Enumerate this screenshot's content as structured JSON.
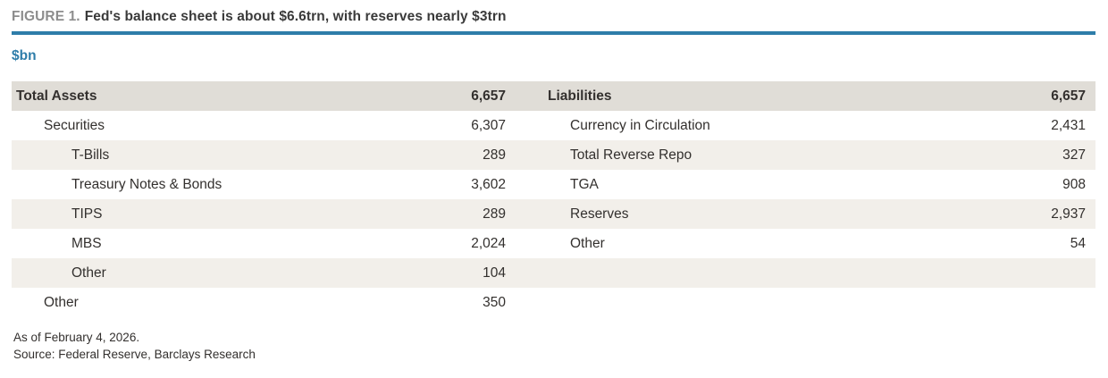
{
  "colors": {
    "accent": "#2e7da9",
    "figure_label": "#8d8d8d",
    "title_text": "#3a3a3a",
    "text": "#33302e",
    "header_bg": "#e0ddd7",
    "stripe_bg": "#f2efea"
  },
  "figure": {
    "label": "FIGURE 1.",
    "title": "Fed's balance sheet is about $6.6trn, with reserves nearly $3trn"
  },
  "units_label": "$bn",
  "table": {
    "header": {
      "assets_label": "Total Assets",
      "assets_value": "6,657",
      "liabilities_label": "Liabilities",
      "liabilities_value": "6,657"
    },
    "rows": [
      {
        "asset_label": "Securities",
        "asset_indent": 1,
        "asset_value": "6,307",
        "liab_label": "Currency in Circulation",
        "liab_indent": 1,
        "liab_value": "2,431"
      },
      {
        "asset_label": "T-Bills",
        "asset_indent": 2,
        "asset_value": "289",
        "liab_label": "Total Reverse Repo",
        "liab_indent": 1,
        "liab_value": "327"
      },
      {
        "asset_label": "Treasury Notes & Bonds",
        "asset_indent": 2,
        "asset_value": "3,602",
        "liab_label": "TGA",
        "liab_indent": 1,
        "liab_value": "908"
      },
      {
        "asset_label": "TIPS",
        "asset_indent": 2,
        "asset_value": "289",
        "liab_label": "Reserves",
        "liab_indent": 1,
        "liab_value": "2,937"
      },
      {
        "asset_label": "MBS",
        "asset_indent": 2,
        "asset_value": "2,024",
        "liab_label": "Other",
        "liab_indent": 1,
        "liab_value": "54"
      },
      {
        "asset_label": "Other",
        "asset_indent": 2,
        "asset_value": "104",
        "liab_label": "",
        "liab_indent": 0,
        "liab_value": ""
      },
      {
        "asset_label": "Other",
        "asset_indent": 1,
        "asset_value": "350",
        "liab_label": "",
        "liab_indent": 0,
        "liab_value": ""
      }
    ]
  },
  "footnotes": {
    "as_of": "As of February 4, 2026.",
    "source": "Source: Federal Reserve, Barclays Research"
  },
  "chart_data": {
    "type": "table",
    "title": "FIGURE 1. Fed's balance sheet is about $6.6trn, with reserves nearly $3trn",
    "units": "$bn",
    "columns": [
      "Assets item",
      "Assets value ($bn)",
      "Liabilities item",
      "Liabilities value ($bn)"
    ],
    "assets": {
      "Total Assets": 6657,
      "Securities": 6307,
      "Securities / T-Bills": 289,
      "Securities / Treasury Notes & Bonds": 3602,
      "Securities / TIPS": 289,
      "Securities / MBS": 2024,
      "Securities / Other": 104,
      "Other": 350
    },
    "liabilities": {
      "Liabilities": 6657,
      "Currency in Circulation": 2431,
      "Total Reverse Repo": 327,
      "TGA": 908,
      "Reserves": 2937,
      "Other": 54
    },
    "as_of_note": "As of February 4, 2026.",
    "source_note": "Source: Federal Reserve, Barclays Research"
  }
}
